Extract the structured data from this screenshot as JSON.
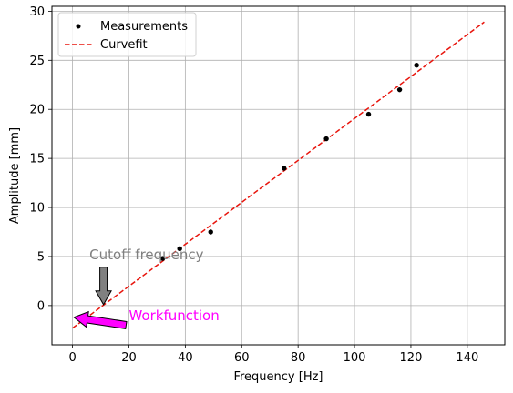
{
  "chart_data": {
    "type": "scatter",
    "title": "",
    "xlabel": "Frequency [Hz]",
    "ylabel": "Amplitude [mm]",
    "xlim": [
      -7.3,
      153.3
    ],
    "ylim": [
      -4,
      30.5
    ],
    "xticks": [
      0,
      20,
      40,
      60,
      80,
      100,
      120,
      140
    ],
    "yticks": [
      0,
      5,
      10,
      15,
      20,
      25,
      30
    ],
    "grid": true,
    "legend_position": "top-left",
    "series": [
      {
        "name": "Measurements",
        "kind": "points",
        "color": "#000000",
        "x": [
          32,
          38,
          49,
          75,
          90,
          105,
          116,
          122
        ],
        "y": [
          4.8,
          5.8,
          7.5,
          14.0,
          17.0,
          19.5,
          22.0,
          24.5
        ]
      },
      {
        "name": "Curvefit",
        "kind": "dashed-line",
        "color": "#e8150d",
        "x": [
          0,
          146
        ],
        "y": [
          -2.3,
          28.9
        ]
      }
    ],
    "annotations": [
      {
        "text": "Cutoff frequency",
        "color": "#808080",
        "text_x": 6,
        "text_y": 4.7,
        "arrow_from": [
          11,
          3.9
        ],
        "arrow_to": [
          11,
          0.1
        ],
        "arrow_color": "#808080"
      },
      {
        "text": "Workfunction",
        "color": "#ff00ff",
        "text_x": 20,
        "text_y": -1.5,
        "arrow_from": [
          19,
          -2.0
        ],
        "arrow_to": [
          0.5,
          -1.2
        ],
        "arrow_color": "#ff00ff"
      }
    ]
  }
}
